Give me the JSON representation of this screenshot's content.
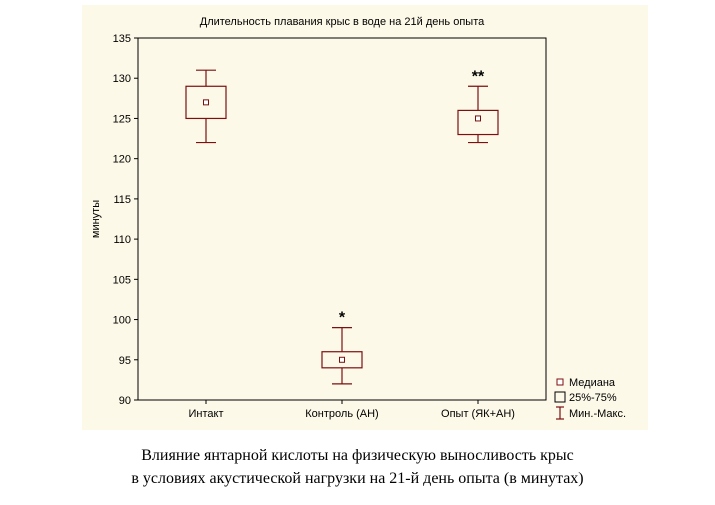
{
  "chart_data": {
    "type": "box",
    "title": "Длительность плавания крыс в воде на 21й день опыта",
    "xlabel": "",
    "ylabel": "минуты",
    "ylim": [
      90,
      135
    ],
    "yticks": [
      90,
      95,
      100,
      105,
      110,
      115,
      120,
      125,
      130,
      135
    ],
    "grid": false,
    "legend_position": "right-bottom",
    "categories": [
      "Интакт",
      "Контроль (АН)",
      "Опыт (ЯК+АН)"
    ],
    "boxes": [
      {
        "category": "Интакт",
        "median": 127,
        "q1": 125,
        "q3": 129,
        "min": 122,
        "max": 131,
        "marker": ""
      },
      {
        "category": "Контроль (АН)",
        "median": 95,
        "q1": 94,
        "q3": 96,
        "min": 92,
        "max": 99,
        "marker": "*"
      },
      {
        "category": "Опыт (ЯК+АН)",
        "median": 125,
        "q1": 123,
        "q3": 126,
        "min": 122,
        "max": 129,
        "marker": "**"
      }
    ],
    "legend": {
      "median": "Медиана",
      "box": "25%-75%",
      "whisker": "Мин.-Макс."
    },
    "colors": {
      "stroke": "#7a1010",
      "axis": "#000000",
      "panel": "#fdf9e8"
    }
  },
  "caption": {
    "line1": "Влияние янтарной кислоты на физическую выносливость крыс",
    "line2": "в условиях акустической нагрузки на 21-й день опыта (в минутах)"
  }
}
